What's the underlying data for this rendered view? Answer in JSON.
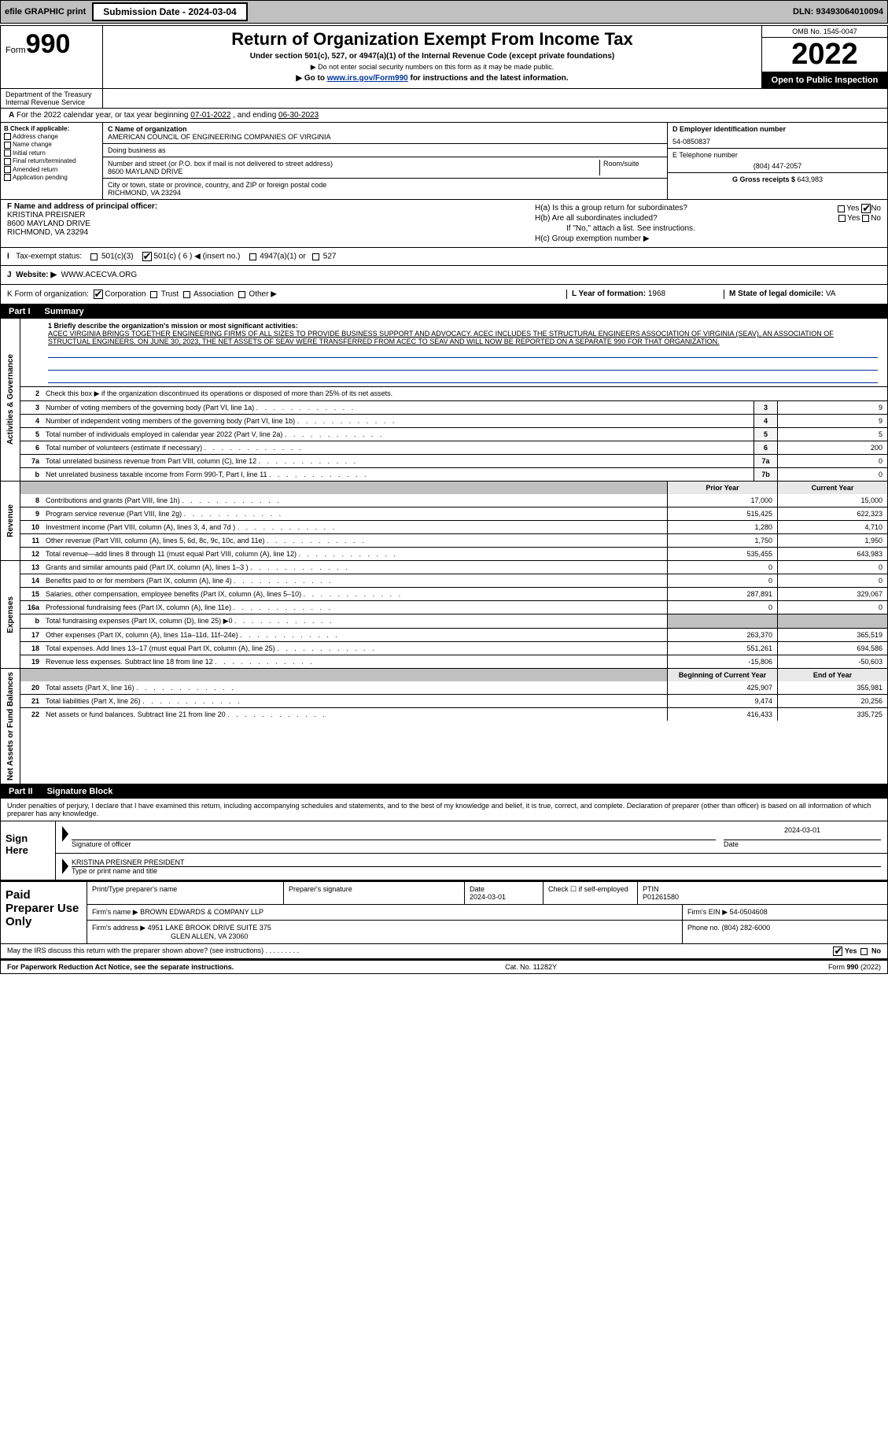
{
  "header_bar": {
    "efile": "efile GRAPHIC print",
    "sub_date": "Submission Date - 2024-03-04",
    "dln": "DLN: 93493064010094"
  },
  "form_head": {
    "form_word": "Form",
    "num": "990",
    "title": "Return of Organization Exempt From Income Tax",
    "under": "Under section 501(c), 527, or 4947(a)(1) of the Internal Revenue Code (except private foundations)",
    "warn": "▶ Do not enter social security numbers on this form as it may be made public.",
    "goto_pre": "▶ Go to ",
    "goto_link": "www.irs.gov/Form990",
    "goto_post": " for instructions and the latest information.",
    "omb": "OMB No. 1545-0047",
    "year": "2022",
    "open": "Open to Public Inspection",
    "dept": "Department of the Treasury",
    "irs": "Internal Revenue Service"
  },
  "row_a": {
    "label_pre": "For the 2022 calendar year, or tax year beginning ",
    "begin": "07-01-2022",
    "mid": "   , and ending ",
    "end": "06-30-2023"
  },
  "col_b": {
    "head": "B Check if applicable:",
    "items": [
      "Address change",
      "Name change",
      "Initial return",
      "Final return/terminated",
      "Amended return",
      "Application pending"
    ]
  },
  "col_c": {
    "name_h": "C Name of organization",
    "name": "AMERICAN COUNCIL OF ENGINEERING COMPANIES OF VIRGINIA",
    "dba_h": "Doing business as",
    "dba": "",
    "street_h": "Number and street (or P.O. box if mail is not delivered to street address)",
    "room_h": "Room/suite",
    "street": "8600 MAYLAND DRIVE",
    "city_h": "City or town, state or province, country, and ZIP or foreign postal code",
    "city": "RICHMOND, VA  23294"
  },
  "col_d": {
    "ein_h": "D Employer identification number",
    "ein": "54-0850837",
    "tel_h": "E Telephone number",
    "tel": "(804) 447-2057",
    "gross_h": "G Gross receipts $ ",
    "gross": "643,983"
  },
  "row_f": {
    "label": "F  Name and address of principal officer:",
    "name": "KRISTINA PREISNER",
    "addr1": "8600 MAYLAND DRIVE",
    "addr2": "RICHMOND, VA  23294"
  },
  "row_h": {
    "ha": "H(a)  Is this a group return for subordinates?",
    "hb": "H(b)  Are all subordinates included?",
    "hb_note": "If \"No,\" attach a list. See instructions.",
    "hc": "H(c)  Group exemption number ▶",
    "yes": "Yes",
    "no": "No"
  },
  "row_i": {
    "label": "Tax-exempt status:",
    "i1": "501(c)(3)",
    "i2": "501(c) ( 6 ) ◀ (insert no.)",
    "i3": "4947(a)(1) or",
    "i4": "527"
  },
  "row_j": {
    "label": "J",
    "text": "Website: ▶",
    "url": "WWW.ACECVA.ORG"
  },
  "row_k": {
    "k": "K Form of organization:",
    "k1": "Corporation",
    "k2": "Trust",
    "k3": "Association",
    "k4": "Other ▶",
    "l": "L Year of formation: ",
    "lval": "1968",
    "m": "M State of legal domicile: ",
    "mval": "VA"
  },
  "part1": {
    "num": "Part I",
    "title": "Summary"
  },
  "summary": {
    "q1": "1  Briefly describe the organization's mission or most significant activities:",
    "mission": "ACEC VIRGINIA BRINGS TOGETHER ENGINEERING FIRMS OF ALL SIZES TO PROVIDE BUSINESS SUPPORT AND ADVOCACY. ACEC INCLUDES THE STRUCTURAL ENGINEERS ASSOCIATION OF VIRGINIA (SEAV), AN ASSOCIATION OF STRUCTUAL ENGINEERS. ON JUNE 30, 2023, THE NET ASSETS OF SEAV WERE TRANSFERRED FROM ACEC TO SEAV AND WILL NOW BE REPORTED ON A SEPARATE 990 FOR THAT ORGANIZATION.",
    "q2": "Check this box ▶ ☐ if the organization discontinued its operations or disposed of more than 25% of its net assets."
  },
  "gov_rows": [
    {
      "n": "2",
      "label": "Check this box ▶ if the organization discontinued its operations or disposed of more than 25% of its net assets.",
      "box": "",
      "val": ""
    },
    {
      "n": "3",
      "label": "Number of voting members of the governing body (Part VI, line 1a)",
      "box": "3",
      "val": "9"
    },
    {
      "n": "4",
      "label": "Number of independent voting members of the governing body (Part VI, line 1b)",
      "box": "4",
      "val": "9"
    },
    {
      "n": "5",
      "label": "Total number of individuals employed in calendar year 2022 (Part V, line 2a)",
      "box": "5",
      "val": "5"
    },
    {
      "n": "6",
      "label": "Total number of volunteers (estimate if necessary)",
      "box": "6",
      "val": "200"
    },
    {
      "n": "7a",
      "label": "Total unrelated business revenue from Part VIII, column (C), line 12",
      "box": "7a",
      "val": "0"
    },
    {
      "n": "b",
      "label": "Net unrelated business taxable income from Form 990-T, Part I, line 11",
      "box": "7b",
      "val": "0"
    }
  ],
  "year_heads": {
    "prior": "Prior Year",
    "current": "Current Year"
  },
  "revenue_rows": [
    {
      "n": "8",
      "label": "Contributions and grants (Part VIII, line 1h)",
      "py": "17,000",
      "cy": "15,000"
    },
    {
      "n": "9",
      "label": "Program service revenue (Part VIII, line 2g)",
      "py": "515,425",
      "cy": "622,323"
    },
    {
      "n": "10",
      "label": "Investment income (Part VIII, column (A), lines 3, 4, and 7d )",
      "py": "1,280",
      "cy": "4,710"
    },
    {
      "n": "11",
      "label": "Other revenue (Part VIII, column (A), lines 5, 6d, 8c, 9c, 10c, and 11e)",
      "py": "1,750",
      "cy": "1,950"
    },
    {
      "n": "12",
      "label": "Total revenue—add lines 8 through 11 (must equal Part VIII, column (A), line 12)",
      "py": "535,455",
      "cy": "643,983"
    }
  ],
  "expense_rows": [
    {
      "n": "13",
      "label": "Grants and similar amounts paid (Part IX, column (A), lines 1–3 )",
      "py": "0",
      "cy": "0"
    },
    {
      "n": "14",
      "label": "Benefits paid to or for members (Part IX, column (A), line 4)",
      "py": "0",
      "cy": "0"
    },
    {
      "n": "15",
      "label": "Salaries, other compensation, employee benefits (Part IX, column (A), lines 5–10)",
      "py": "287,891",
      "cy": "329,067"
    },
    {
      "n": "16a",
      "label": "Professional fundraising fees (Part IX, column (A), line 11e)",
      "py": "0",
      "cy": "0"
    },
    {
      "n": "b",
      "label": "Total fundraising expenses (Part IX, column (D), line 25) ▶0",
      "py": "",
      "cy": "",
      "gray": true
    },
    {
      "n": "17",
      "label": "Other expenses (Part IX, column (A), lines 11a–11d, 11f–24e)",
      "py": "263,370",
      "cy": "365,519"
    },
    {
      "n": "18",
      "label": "Total expenses. Add lines 13–17 (must equal Part IX, column (A), line 25)",
      "py": "551,261",
      "cy": "694,586"
    },
    {
      "n": "19",
      "label": "Revenue less expenses. Subtract line 18 from line 12",
      "py": "-15,806",
      "cy": "-50,603"
    }
  ],
  "net_heads": {
    "begin": "Beginning of Current Year",
    "end": "End of Year"
  },
  "net_rows": [
    {
      "n": "20",
      "label": "Total assets (Part X, line 16)",
      "py": "425,907",
      "cy": "355,981"
    },
    {
      "n": "21",
      "label": "Total liabilities (Part X, line 26)",
      "py": "9,474",
      "cy": "20,256"
    },
    {
      "n": "22",
      "label": "Net assets or fund balances. Subtract line 21 from line 20",
      "py": "416,433",
      "cy": "335,725"
    }
  ],
  "vert_labels": {
    "gov": "Activities & Governance",
    "rev": "Revenue",
    "exp": "Expenses",
    "net": "Net Assets or Fund Balances"
  },
  "part2": {
    "num": "Part II",
    "title": "Signature Block"
  },
  "penalty": "Under penalties of perjury, I declare that I have examined this return, including accompanying schedules and statements, and to the best of my knowledge and belief, it is true, correct, and complete. Declaration of preparer (other than officer) is based on all information of which preparer has any knowledge.",
  "sign": {
    "here": "Sign Here",
    "sig_of": "Signature of officer",
    "date": "Date",
    "date_val": "2024-03-01",
    "name": "KRISTINA PREISNER  PRESIDENT",
    "type_h": "Type or print name and title"
  },
  "paid": {
    "title": "Paid Preparer Use Only",
    "h1": "Print/Type preparer's name",
    "h2": "Preparer's signature",
    "h3": "Date",
    "h4": "Check ☐ if self-employed",
    "h5": "PTIN",
    "date": "2024-03-01",
    "ptin": "P01261580",
    "firm_h": "Firm's name    ▶",
    "firm": "BROWN EDWARDS & COMPANY LLP",
    "ein_h": "Firm's EIN ▶",
    "ein": "54-0504608",
    "addr_h": "Firm's address ▶",
    "addr1": "4951 LAKE BROOK DRIVE SUITE 375",
    "addr2": "GLEN ALLEN, VA  23060",
    "phone_h": "Phone no. ",
    "phone": "(804) 282-6000"
  },
  "may_irs": "May the IRS discuss this return with the preparer shown above? (see instructions)",
  "footer": {
    "left": "For Paperwork Reduction Act Notice, see the separate instructions.",
    "mid": "Cat. No. 11282Y",
    "right": "Form 990 (2022)"
  }
}
